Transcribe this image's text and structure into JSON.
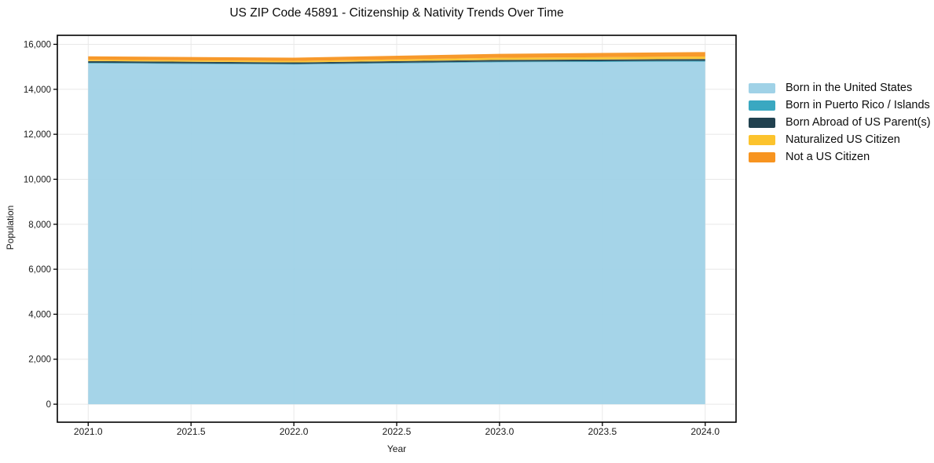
{
  "chart_data": {
    "type": "area",
    "stacked": true,
    "title": "US ZIP Code 45891 - Citizenship & Nativity Trends Over Time",
    "xlabel": "Year",
    "ylabel": "Population",
    "x": [
      2021,
      2022,
      2023,
      2024
    ],
    "series": [
      {
        "name": "Born in the United States",
        "color": "#a0d2e7",
        "values": [
          15150,
          15100,
          15200,
          15230
        ]
      },
      {
        "name": "Born in Puerto Rico / Islands",
        "color": "#3aa8c1",
        "values": [
          30,
          25,
          30,
          35
        ]
      },
      {
        "name": "Born Abroad of US Parent(s)",
        "color": "#21414f",
        "values": [
          75,
          70,
          75,
          80
        ]
      },
      {
        "name": "Naturalized US Citizen",
        "color": "#fcc32d",
        "values": [
          60,
          65,
          95,
          115
        ]
      },
      {
        "name": "Not a US Citizen",
        "color": "#f79420",
        "values": [
          150,
          145,
          175,
          195
        ]
      }
    ],
    "xticks": {
      "values": [
        2021.0,
        2021.5,
        2022.0,
        2022.5,
        2023.0,
        2023.5,
        2024.0
      ],
      "labels": [
        "2021.0",
        "2021.5",
        "2022.0",
        "2022.5",
        "2023.0",
        "2023.5",
        "2024.0"
      ]
    },
    "yticks": {
      "values": [
        0,
        2000,
        4000,
        6000,
        8000,
        10000,
        12000,
        14000,
        16000
      ],
      "labels": [
        "0",
        "2,000",
        "4,000",
        "6,000",
        "8,000",
        "10,000",
        "12,000",
        "14,000",
        "16,000"
      ]
    },
    "xlim": [
      2020.85,
      2024.15
    ],
    "ylim": [
      -800,
      16400
    ],
    "grid": true,
    "grid_color": "#e8e8e8",
    "spine_color": "#000000",
    "tick_label_color": "#1a1a1a",
    "legend_position": "right"
  }
}
